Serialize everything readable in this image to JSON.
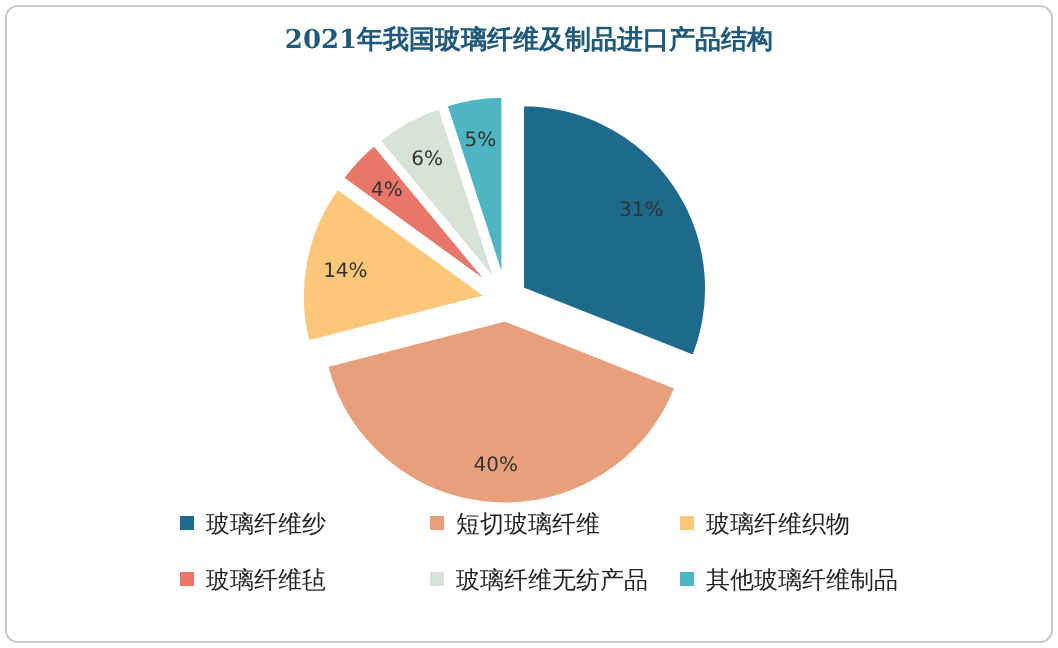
{
  "chart_data": {
    "type": "pie",
    "title": "2021年我国玻璃纤维及制品进口产品结构",
    "categories": [
      "玻璃纤维纱",
      "短切玻璃纤维",
      "玻璃纤维织物",
      "玻璃纤维毡",
      "玻璃纤维无纺产品",
      "其他玻璃纤维制品"
    ],
    "values": [
      31,
      40,
      14,
      4,
      6,
      5
    ],
    "colors": [
      "#1d6a8c",
      "#e8a07c",
      "#fdc77a",
      "#e8776a",
      "#d7e3d6",
      "#4db6c2"
    ],
    "value_labels": [
      "31%",
      "40%",
      "14%",
      "4%",
      "6%",
      "5%"
    ],
    "legend": "bottom"
  }
}
